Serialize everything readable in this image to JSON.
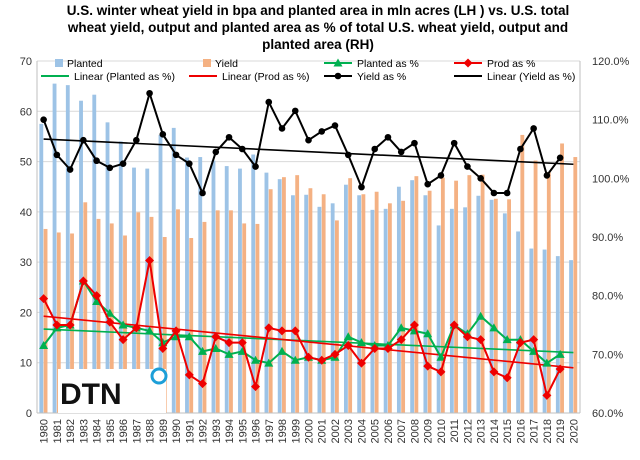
{
  "chart_data": {
    "type": "bar",
    "title_lines": [
      "U.S. winter wheat yield in bpa and planted area in mln acres (LH ) vs. U.S. total",
      "wheat yield, output and planted area as % of total U.S. wheat yield, output and",
      "planted area (RH)"
    ],
    "categories": [
      "1980",
      "1981",
      "1982",
      "1983",
      "1984",
      "1985",
      "1986",
      "1987",
      "1988",
      "1989",
      "1990",
      "1991",
      "1992",
      "1993",
      "1994",
      "1995",
      "1996",
      "1997",
      "1998",
      "1999",
      "2000",
      "2001",
      "2002",
      "2003",
      "2004",
      "2005",
      "2006",
      "2007",
      "2008",
      "2009",
      "2010",
      "2011",
      "2012",
      "2013",
      "2014",
      "2015",
      "2016",
      "2017",
      "2018",
      "2019",
      "2020"
    ],
    "y_left": {
      "min": 0,
      "max": 70,
      "ticks": [
        "0",
        "10",
        "20",
        "30",
        "40",
        "50",
        "60",
        "70"
      ]
    },
    "y_right": {
      "min": 60,
      "max": 120,
      "ticks": [
        "60.0%",
        "70.0%",
        "80.0%",
        "90.0%",
        "100.0%",
        "110.0%",
        "120.0%"
      ]
    },
    "series": [
      {
        "name": "Planted",
        "axis": "left",
        "kind": "bar",
        "color": "#9dc3e6",
        "values": [
          57.5,
          65.5,
          65.2,
          62.1,
          63.3,
          57.8,
          54.0,
          48.8,
          48.6,
          55.3,
          56.7,
          50.8,
          50.9,
          50.2,
          49.1,
          48.6,
          51.4,
          47.8,
          46.5,
          43.3,
          43.4,
          41.0,
          41.7,
          45.4,
          43.3,
          40.4,
          40.6,
          45.0,
          46.3,
          43.3,
          37.3,
          40.6,
          40.9,
          43.2,
          42.4,
          39.7,
          36.1,
          32.7,
          32.5,
          31.2,
          30.4
        ]
      },
      {
        "name": "Yield",
        "axis": "left",
        "kind": "bar",
        "color": "#f4b183",
        "values": [
          36.6,
          35.9,
          35.7,
          41.9,
          38.6,
          37.7,
          35.3,
          39.9,
          39.0,
          35.0,
          40.5,
          34.8,
          38.0,
          40.3,
          40.3,
          37.7,
          37.6,
          44.5,
          46.9,
          47.3,
          44.7,
          43.5,
          38.3,
          46.7,
          43.5,
          44.0,
          41.7,
          42.2,
          47.1,
          44.2,
          46.8,
          46.2,
          47.3,
          47.4,
          42.6,
          42.5,
          55.3,
          50.2,
          47.9,
          53.6,
          50.9
        ]
      },
      {
        "name": "Planted as %",
        "axis": "right",
        "kind": "line",
        "color": "#00b050",
        "marker": "triangle",
        "values": [
          71.5,
          74.5,
          75.0,
          82.5,
          79.0,
          77.0,
          75.0,
          74.5,
          74.0,
          72.0,
          73.0,
          73.0,
          70.5,
          71.0,
          70.0,
          70.5,
          69.0,
          68.5,
          70.5,
          69.0,
          69.5,
          69.0,
          69.5,
          73.0,
          72.0,
          71.5,
          71.5,
          74.5,
          74.0,
          73.5,
          69.5,
          75.0,
          73.5,
          76.5,
          74.5,
          72.5,
          72.5,
          70.5,
          68.5,
          70.0,
          null
        ]
      },
      {
        "name": "Linear (Planted as %)",
        "axis": "right",
        "kind": "trend",
        "color": "#00b050",
        "values": [
          74.3,
          null,
          null,
          null,
          null,
          null,
          null,
          null,
          null,
          null,
          null,
          null,
          null,
          null,
          null,
          null,
          null,
          null,
          null,
          null,
          null,
          null,
          null,
          null,
          null,
          null,
          null,
          null,
          null,
          null,
          null,
          null,
          null,
          null,
          null,
          null,
          null,
          null,
          null,
          null,
          70.3
        ]
      },
      {
        "name": "Prod as %",
        "axis": "right",
        "kind": "line",
        "color": "#ee0000",
        "marker": "diamond",
        "values": [
          79.5,
          75.0,
          75.0,
          82.5,
          80.0,
          75.5,
          72.5,
          74.5,
          86.0,
          71.0,
          74.0,
          66.5,
          65.0,
          73.0,
          72.0,
          72.0,
          64.5,
          74.5,
          74.0,
          74.0,
          69.5,
          69.0,
          70.0,
          71.5,
          68.5,
          71.0,
          71.0,
          72.5,
          75.0,
          68.0,
          67.0,
          75.0,
          73.0,
          72.5,
          67.0,
          66.0,
          72.0,
          72.5,
          63.0,
          67.5,
          null
        ]
      },
      {
        "name": "Linear (Prod as %)",
        "axis": "right",
        "kind": "trend",
        "color": "#ee0000",
        "values": [
          76.5,
          null,
          null,
          null,
          null,
          null,
          null,
          null,
          null,
          null,
          null,
          null,
          null,
          null,
          null,
          null,
          null,
          null,
          null,
          null,
          null,
          null,
          null,
          null,
          null,
          null,
          null,
          null,
          null,
          null,
          null,
          null,
          null,
          null,
          null,
          null,
          null,
          null,
          null,
          null,
          67.7
        ]
      },
      {
        "name": "Yield as %",
        "axis": "right",
        "kind": "line",
        "color": "#000000",
        "marker": "circle",
        "values": [
          110.0,
          104.0,
          101.5,
          106.5,
          103.0,
          101.8,
          102.5,
          106.5,
          114.5,
          107.5,
          104.0,
          102.5,
          97.5,
          104.5,
          107.0,
          105.0,
          102.0,
          113.0,
          108.5,
          111.5,
          106.5,
          108.0,
          109.0,
          104.0,
          98.5,
          105.0,
          107.0,
          104.5,
          106.0,
          99.0,
          100.5,
          106.0,
          102.0,
          100.0,
          97.5,
          97.5,
          105.0,
          108.5,
          100.5,
          103.5,
          null
        ]
      },
      {
        "name": "Linear (Yield as %)",
        "axis": "right",
        "kind": "trend",
        "color": "#000000",
        "values": [
          106.7,
          null,
          null,
          null,
          null,
          null,
          null,
          null,
          null,
          null,
          null,
          null,
          null,
          null,
          null,
          null,
          null,
          null,
          null,
          null,
          null,
          null,
          null,
          null,
          null,
          null,
          null,
          null,
          null,
          null,
          null,
          null,
          null,
          null,
          null,
          null,
          null,
          null,
          null,
          null,
          102.4
        ]
      }
    ],
    "legend": {
      "placement": "top",
      "entries": [
        "Planted",
        "Yield",
        "Planted as %",
        "Prod as %",
        "Linear (Planted as %)",
        "Linear (Prod as %)",
        "Yield as %",
        "Linear (Yield as %)"
      ]
    },
    "grid": true,
    "logo": {
      "text": "DTN",
      "color": "#1d9fd8"
    }
  }
}
